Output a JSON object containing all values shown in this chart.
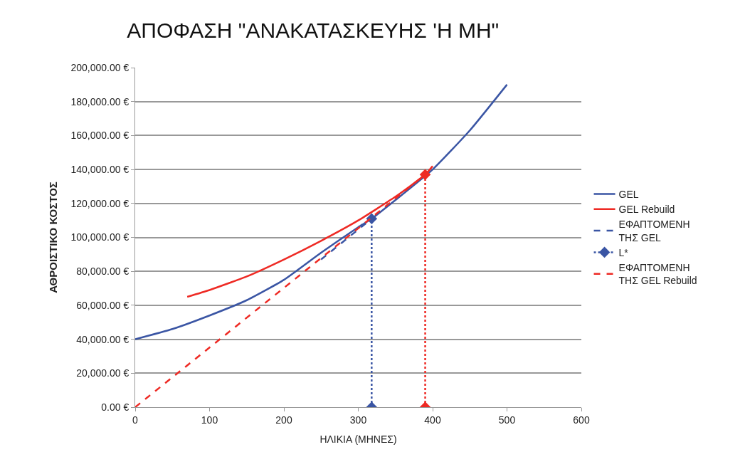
{
  "chart_data": {
    "type": "line",
    "title": "ΑΠΟΦΑΣΗ \"ΑΝΑΚΑΤΑΣΚΕΥΗΣ 'Η ΜΗ\"",
    "xlabel": "ΗΛΙΚΙΑ (ΜΗΝΕΣ)",
    "ylabel": "ΑΘΡΟΙΣΤΙΚΟ ΚΟΣΤΟΣ",
    "xlim": [
      0,
      600
    ],
    "xticks": [
      0,
      100,
      200,
      300,
      400,
      500,
      600
    ],
    "ylim": [
      0,
      200000
    ],
    "yticks": [
      {
        "value": 0,
        "label": "0.00 €"
      },
      {
        "value": 20000,
        "label": "20,000.00 €"
      },
      {
        "value": 40000,
        "label": "40,000.00 €"
      },
      {
        "value": 60000,
        "label": "60,000.00 €"
      },
      {
        "value": 80000,
        "label": "80,000.00 €"
      },
      {
        "value": 100000,
        "label": "100,000.00 €"
      },
      {
        "value": 120000,
        "label": "120,000.00 €"
      },
      {
        "value": 140000,
        "label": "140,000.00 €"
      },
      {
        "value": 160000,
        "label": "160,000.00 €"
      },
      {
        "value": 180000,
        "label": "180,000.00 €"
      },
      {
        "value": 200000,
        "label": "200,000.00 €"
      }
    ],
    "grid": "y",
    "legend": "right",
    "series": [
      {
        "name": "GEL",
        "color": "#3a55a4",
        "line_style": "solid",
        "marker": "none",
        "x": [
          0,
          50,
          100,
          150,
          200,
          250,
          300,
          318,
          350,
          400,
          450,
          500
        ],
        "values": [
          40000,
          46000,
          54000,
          63000,
          75000,
          91000,
          106000,
          111000,
          122000,
          140000,
          163000,
          190000
        ]
      },
      {
        "name": "GEL Rebuild",
        "color": "#ee2a24",
        "line_style": "solid",
        "marker": "none",
        "x": [
          70,
          100,
          150,
          200,
          250,
          300,
          350,
          390,
          400
        ],
        "values": [
          65000,
          69000,
          77000,
          87000,
          98000,
          110000,
          124000,
          137000,
          142000
        ]
      },
      {
        "name": "ΕΦΑΠΤΟΜΕΝΗ\nΤΗΣ GEL",
        "color": "#3a55a4",
        "line_style": "dashed",
        "marker": "none",
        "x": [
          250,
          318
        ],
        "values": [
          87000,
          111000
        ]
      },
      {
        "name": "L*",
        "color": "#3a55a4",
        "line_style": "dotted",
        "marker": "diamond",
        "x": [
          318,
          318
        ],
        "values": [
          0,
          111000
        ]
      },
      {
        "name": "ΕΦΑΠΤΟΜΕΝΗ\nΤΗΣ GEL Rebuild",
        "color": "#ee2a24",
        "line_style": "dashed",
        "marker": "none",
        "x": [
          0,
          390
        ],
        "values": [
          0,
          137000
        ]
      },
      {
        "color": "#ee2a24",
        "line_style": "dotted",
        "marker": "diamond",
        "x": [
          390,
          390
        ],
        "values": [
          0,
          137000
        ]
      }
    ]
  }
}
